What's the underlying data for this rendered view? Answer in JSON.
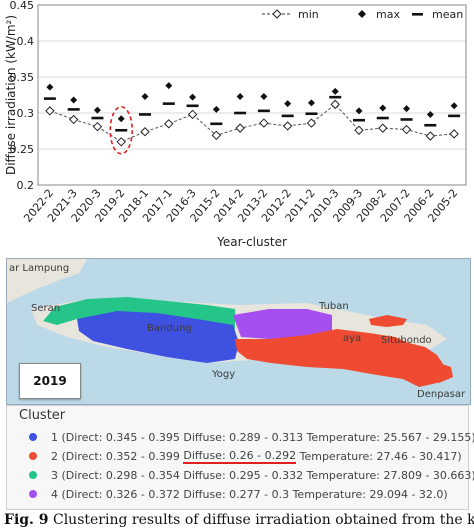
{
  "chart_data": {
    "type": "scatter",
    "ylabel": "Diffuse irradiation (kW/m²)",
    "xlabel": "Year-cluster",
    "ylim": [
      0.2,
      0.45
    ],
    "yticks": [
      "0.2",
      "0.25",
      "0.3",
      "0.35",
      "0.4",
      "0.45"
    ],
    "grid": true,
    "legend_placement": "top-right",
    "categories": [
      "2022-2",
      "2021-3",
      "2020-3",
      "2019-2",
      "2018-1",
      "2017-1",
      "2016-3",
      "2015-2",
      "2014-2",
      "2013-2",
      "2012-2",
      "2011-2",
      "2010-3",
      "2009-3",
      "2008-2",
      "2007-2",
      "2006-2",
      "2005-2"
    ],
    "series": [
      {
        "name": "min",
        "values": [
          0.303,
          0.291,
          0.281,
          0.26,
          0.274,
          0.285,
          0.298,
          0.269,
          0.279,
          0.286,
          0.282,
          0.286,
          0.312,
          0.276,
          0.279,
          0.277,
          0.268,
          0.271
        ]
      },
      {
        "name": "max",
        "values": [
          0.336,
          0.318,
          0.304,
          0.292,
          0.323,
          0.338,
          0.322,
          0.305,
          0.323,
          0.323,
          0.313,
          0.314,
          0.33,
          0.303,
          0.307,
          0.306,
          0.298,
          0.31
        ]
      },
      {
        "name": "mean",
        "values": [
          0.32,
          0.305,
          0.293,
          0.276,
          0.298,
          0.313,
          0.31,
          0.285,
          0.3,
          0.303,
          0.296,
          0.299,
          0.322,
          0.29,
          0.293,
          0.291,
          0.283,
          0.296
        ]
      }
    ],
    "highlight": {
      "category": "2019-2",
      "color": "#e02020"
    }
  },
  "map": {
    "year": "2019",
    "places": [
      "ar Lampung",
      "Seran",
      "Bandung",
      "Yogy",
      "Tuban",
      "Situbondo",
      "Denpasar",
      "aya"
    ]
  },
  "legend": {
    "title": "Cluster",
    "items": [
      {
        "label": "1 (Direct: 0.345 - 0.395 Diffuse: 0.289 - 0.313 Temperature: 25.567 - 29.155)",
        "color": "#3f51e0"
      },
      {
        "pre": "2 (Direct: 0.352 - 0.399 ",
        "underlined": "Diffuse: 0.26 - 0.292",
        "post": " Temperature: 27.46 - 30.417)",
        "color": "#ef4b32"
      },
      {
        "label": "3 (Direct: 0.298 - 0.354 Diffuse: 0.295 - 0.332 Temperature: 27.809 - 30.663)",
        "color": "#25c58a"
      },
      {
        "label": "4 (Direct: 0.326 - 0.372 Diffuse: 0.277 - 0.3 Temperature: 29.094 - 32.0)",
        "color": "#a64ff0"
      }
    ]
  },
  "caption": {
    "fig": "Fig. 9",
    "text": " Clustering results of diffuse irradiation obtained from the k-"
  }
}
